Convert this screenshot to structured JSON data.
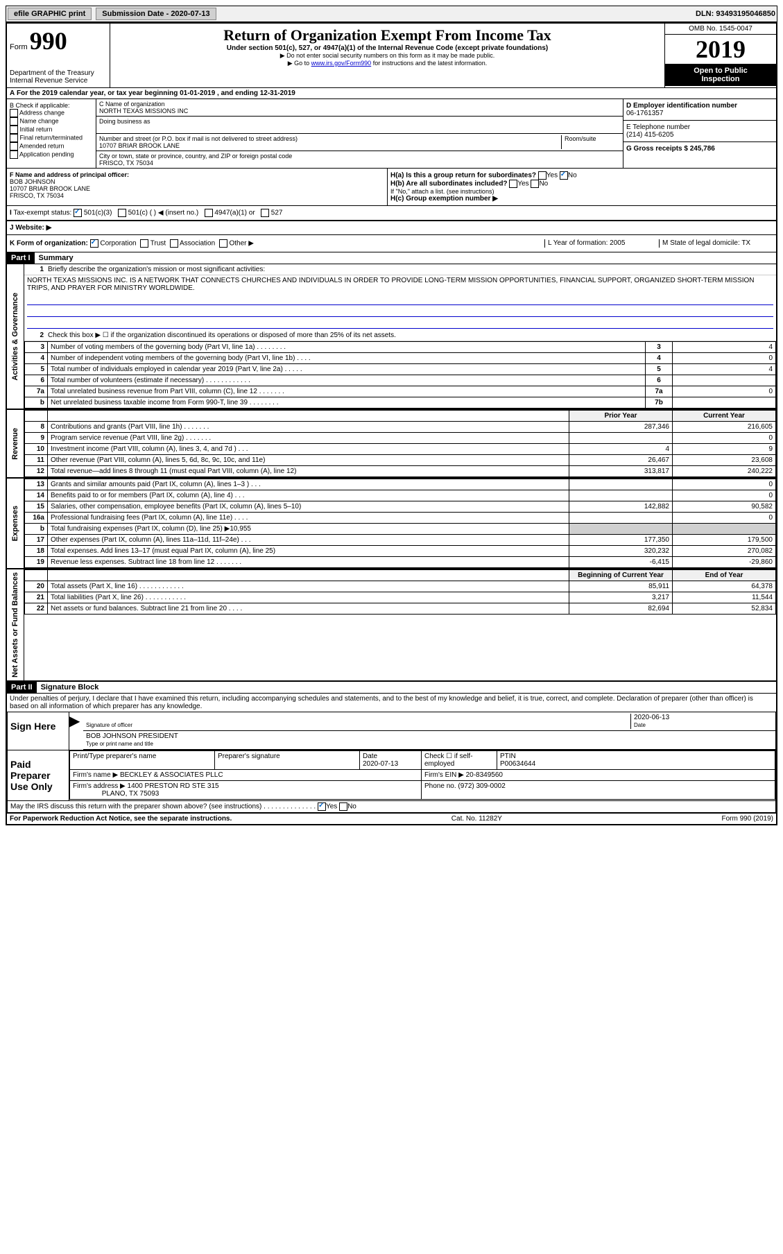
{
  "topbar": {
    "efile": "efile GRAPHIC print",
    "sub_label": "Submission Date - 2020-07-13",
    "dln": "DLN: 93493195046850"
  },
  "header": {
    "form_label": "Form",
    "form_num": "990",
    "dept": "Department of the Treasury",
    "irs": "Internal Revenue Service",
    "title": "Return of Organization Exempt From Income Tax",
    "subtitle": "Under section 501(c), 527, or 4947(a)(1) of the Internal Revenue Code (except private foundations)",
    "instr1": "▶ Do not enter social security numbers on this form as it may be made public.",
    "instr2_pre": "▶ Go to ",
    "instr2_link": "www.irs.gov/Form990",
    "instr2_post": " for instructions and the latest information.",
    "omb": "OMB No. 1545-0047",
    "year": "2019",
    "inspect1": "Open to Public",
    "inspect2": "Inspection"
  },
  "line_a": "For the 2019 calendar year, or tax year beginning 01-01-2019   , and ending 12-31-2019",
  "col_b": {
    "label": "B Check if applicable:",
    "items": [
      "Address change",
      "Name change",
      "Initial return",
      "Final return/terminated",
      "Amended return",
      "Application pending"
    ]
  },
  "col_c": {
    "c_label": "C Name of organization",
    "org_name": "NORTH TEXAS MISSIONS INC",
    "dba_label": "Doing business as",
    "addr_label": "Number and street (or P.O. box if mail is not delivered to street address)",
    "room_label": "Room/suite",
    "street": "10707 BRIAR BROOK LANE",
    "city_label": "City or town, state or province, country, and ZIP or foreign postal code",
    "city": "FRISCO, TX  75034"
  },
  "col_d": {
    "d_label": "D Employer identification number",
    "ein": "06-1761357",
    "e_label": "E Telephone number",
    "phone": "(214) 415-6205",
    "g_label": "G Gross receipts $ 245,786"
  },
  "col_f": {
    "f_label": "F  Name and address of principal officer:",
    "name": "BOB JOHNSON",
    "street": "10707 BRIAR BROOK LANE",
    "city": "FRISCO, TX  75034"
  },
  "col_h": {
    "ha_label": "H(a)  Is this a group return for subordinates?",
    "hb_label": "H(b)  Are all subordinates included?",
    "hb_note": "If \"No,\" attach a list. (see instructions)",
    "hc_label": "H(c)  Group exemption number ▶",
    "yes": "Yes",
    "no": "No"
  },
  "line_i": {
    "label": "Tax-exempt status:",
    "opt1": "501(c)(3)",
    "opt2": "501(c) (   ) ◀ (insert no.)",
    "opt3": "4947(a)(1) or",
    "opt4": "527"
  },
  "line_j": {
    "label": "J   Website: ▶"
  },
  "line_k": {
    "label": "K Form of organization:",
    "opts": [
      "Corporation",
      "Trust",
      "Association",
      "Other ▶"
    ],
    "l_label": "L Year of formation: 2005",
    "m_label": "M State of legal domicile: TX"
  },
  "part1": {
    "part": "Part I",
    "title": "Summary",
    "q1": "Briefly describe the organization's mission or most significant activities:",
    "mission": "NORTH TEXAS MISSIONS INC. IS A NETWORK THAT CONNECTS CHURCHES AND INDIVIDUALS IN ORDER TO PROVIDE LONG-TERM MISSION OPPORTUNITIES, FINANCIAL SUPPORT, ORGANIZED SHORT-TERM MISSION TRIPS, AND PRAYER FOR MINISTRY WORLDWIDE.",
    "q2": "Check this box ▶ ☐  if the organization discontinued its operations or disposed of more than 25% of its net assets.",
    "lines_ag": [
      {
        "n": "3",
        "d": "Number of voting members of the governing body (Part VI, line 1a)  .   .   .   .   .   .   .   .",
        "b": "3",
        "v": "4"
      },
      {
        "n": "4",
        "d": "Number of independent voting members of the governing body (Part VI, line 1b)  .   .   .   .",
        "b": "4",
        "v": "0"
      },
      {
        "n": "5",
        "d": "Total number of individuals employed in calendar year 2019 (Part V, line 2a)  .   .   .   .   .",
        "b": "5",
        "v": "4"
      },
      {
        "n": "6",
        "d": "Total number of volunteers (estimate if necessary)   .   .   .   .   .   .   .   .   .   .   .   .",
        "b": "6",
        "v": ""
      },
      {
        "n": "7a",
        "d": "Total unrelated business revenue from Part VIII, column (C), line 12  .   .   .   .   .   .   .",
        "b": "7a",
        "v": "0"
      },
      {
        "n": "b",
        "d": "Net unrelated business taxable income from Form 990-T, line 39   .   .   .   .   .   .   .   .",
        "b": "7b",
        "v": ""
      }
    ],
    "py_hdr": "Prior Year",
    "cy_hdr": "Current Year",
    "lines_rev": [
      {
        "n": "8",
        "d": "Contributions and grants (Part VIII, line 1h)   .   .   .   .   .   .   .",
        "py": "287,346",
        "cy": "216,605"
      },
      {
        "n": "9",
        "d": "Program service revenue (Part VIII, line 2g)   .   .   .   .   .   .   .",
        "py": "",
        "cy": "0"
      },
      {
        "n": "10",
        "d": "Investment income (Part VIII, column (A), lines 3, 4, and 7d )   .   .   .",
        "py": "4",
        "cy": "9"
      },
      {
        "n": "11",
        "d": "Other revenue (Part VIII, column (A), lines 5, 6d, 8c, 9c, 10c, and 11e)",
        "py": "26,467",
        "cy": "23,608"
      },
      {
        "n": "12",
        "d": "Total revenue—add lines 8 through 11 (must equal Part VIII, column (A), line 12)",
        "py": "313,817",
        "cy": "240,222"
      }
    ],
    "lines_exp": [
      {
        "n": "13",
        "d": "Grants and similar amounts paid (Part IX, column (A), lines 1–3 )  .   .   .",
        "py": "",
        "cy": "0"
      },
      {
        "n": "14",
        "d": "Benefits paid to or for members (Part IX, column (A), line 4)   .   .   .",
        "py": "",
        "cy": "0"
      },
      {
        "n": "15",
        "d": "Salaries, other compensation, employee benefits (Part IX, column (A), lines 5–10)",
        "py": "142,882",
        "cy": "90,582"
      },
      {
        "n": "16a",
        "d": "Professional fundraising fees (Part IX, column (A), line 11e)  .   .   .   .",
        "py": "",
        "cy": "0"
      },
      {
        "n": "b",
        "d": "Total fundraising expenses (Part IX, column (D), line 25) ▶10,955",
        "py": "shade",
        "cy": "shade"
      },
      {
        "n": "17",
        "d": "Other expenses (Part IX, column (A), lines 11a–11d, 11f–24e)   .   .   .",
        "py": "177,350",
        "cy": "179,500"
      },
      {
        "n": "18",
        "d": "Total expenses. Add lines 13–17 (must equal Part IX, column (A), line 25)",
        "py": "320,232",
        "cy": "270,082"
      },
      {
        "n": "19",
        "d": "Revenue less expenses. Subtract line 18 from line 12 .   .   .   .   .   .   .",
        "py": "-6,415",
        "cy": "-29,860"
      }
    ],
    "na_hdr1": "Beginning of Current Year",
    "na_hdr2": "End of Year",
    "lines_na": [
      {
        "n": "20",
        "d": "Total assets (Part X, line 16)  .   .   .   .   .   .   .   .   .   .   .   .",
        "py": "85,911",
        "cy": "64,378"
      },
      {
        "n": "21",
        "d": "Total liabilities (Part X, line 26)  .   .   .   .   .   .   .   .   .   .   .",
        "py": "3,217",
        "cy": "11,544"
      },
      {
        "n": "22",
        "d": "Net assets or fund balances. Subtract line 21 from line 20  .   .   .   .",
        "py": "82,694",
        "cy": "52,834"
      }
    ],
    "vlabels": {
      "ag": "Activities & Governance",
      "rev": "Revenue",
      "exp": "Expenses",
      "na": "Net Assets or Fund Balances"
    }
  },
  "part2": {
    "part": "Part II",
    "title": "Signature Block",
    "decl": "Under penalties of perjury, I declare that I have examined this return, including accompanying schedules and statements, and to the best of my knowledge and belief, it is true, correct, and complete. Declaration of preparer (other than officer) is based on all information of which preparer has any knowledge.",
    "sign_here": "Sign Here",
    "sig_label": "Signature of officer",
    "date_label": "Date",
    "date": "2020-06-13",
    "officer": "BOB JOHNSON PRESIDENT",
    "officer_label": "Type or print name and title",
    "paid_label": "Paid Preparer Use Only",
    "prep_name_label": "Print/Type preparer's name",
    "prep_sig_label": "Preparer's signature",
    "prep_date_label": "Date",
    "prep_date": "2020-07-13",
    "check_label": "Check ☐ if self-employed",
    "ptin_label": "PTIN",
    "ptin": "P00634644",
    "firm_name_label": "Firm's name    ▶",
    "firm_name": "BECKLEY & ASSOCIATES PLLC",
    "firm_ein_label": "Firm's EIN ▶ 20-8349560",
    "firm_addr_label": "Firm's address ▶",
    "firm_addr1": "1400 PRESTON RD STE 315",
    "firm_addr2": "PLANO, TX  75093",
    "phone_label": "Phone no. (972) 309-0002",
    "discuss": "May the IRS discuss this return with the preparer shown above? (see instructions)   .   .   .   .   .   .   .   .   .   .   .   .   .   .",
    "yes": "Yes",
    "no": "No"
  },
  "footer": {
    "left": "For Paperwork Reduction Act Notice, see the separate instructions.",
    "center": "Cat. No. 11282Y",
    "right": "Form 990 (2019)"
  }
}
